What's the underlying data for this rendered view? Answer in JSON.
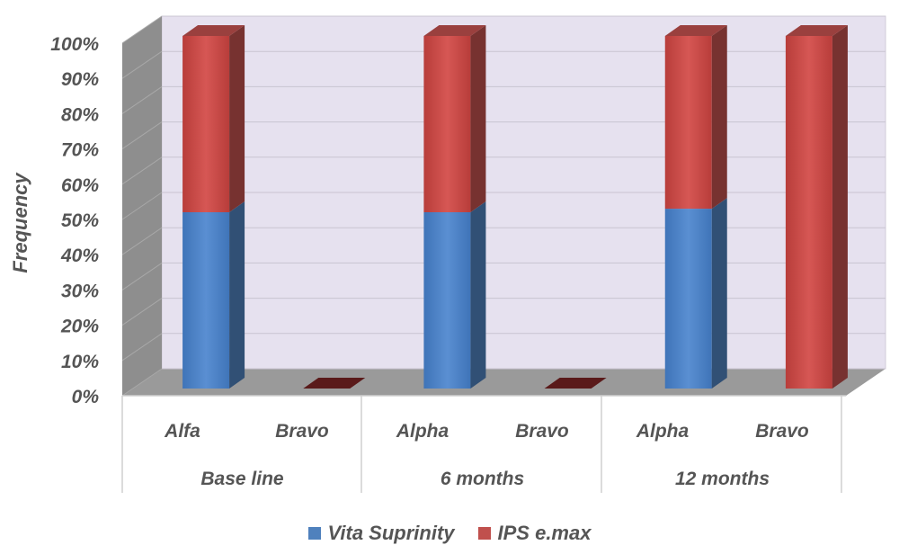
{
  "chart_data": {
    "type": "bar",
    "stacked": true,
    "three_d": true,
    "title": "",
    "ylabel": "Frequency",
    "ylim": [
      0,
      100
    ],
    "yticks": [
      "0%",
      "10%",
      "20%",
      "30%",
      "40%",
      "50%",
      "60%",
      "70%",
      "80%",
      "90%",
      "100%"
    ],
    "groups": [
      {
        "label": "Base line",
        "categories": [
          "Alfa",
          "Bravo"
        ]
      },
      {
        "label": "6 months",
        "categories": [
          "Alpha",
          "Bravo"
        ]
      },
      {
        "label": "12 months",
        "categories": [
          "Alpha",
          "Bravo"
        ]
      }
    ],
    "series": [
      {
        "name": "Vita Suprinity",
        "color": "#4f81bd",
        "values": [
          50,
          0,
          50,
          0,
          51,
          0
        ]
      },
      {
        "name": "IPS e.max",
        "color": "#c0504d",
        "values": [
          50,
          0,
          50,
          0,
          49,
          100
        ]
      }
    ],
    "legend_position": "bottom",
    "grid": true
  }
}
